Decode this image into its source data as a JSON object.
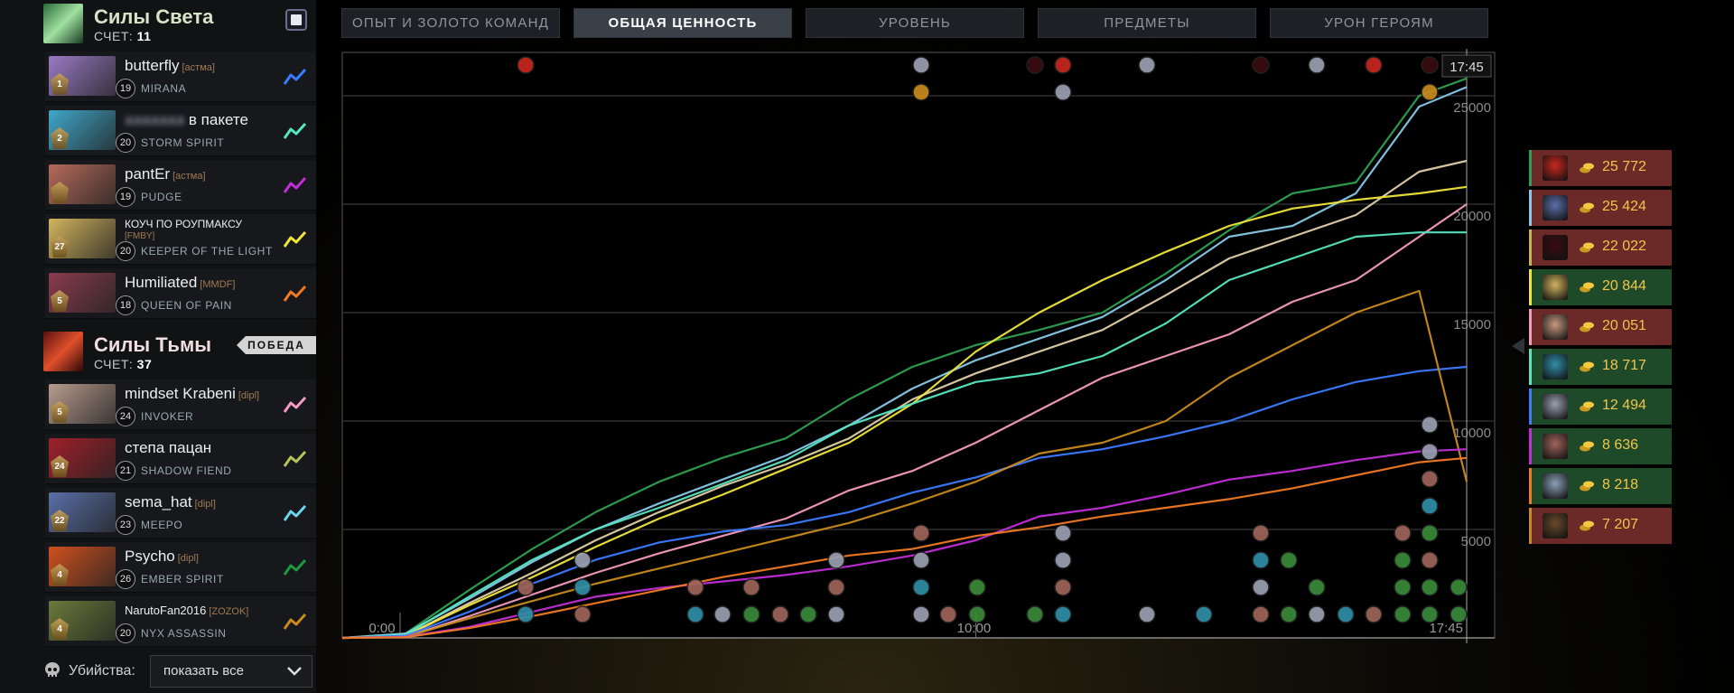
{
  "radiant": {
    "name": "Силы Света",
    "score_label": "СЧЕТ:",
    "score": "11",
    "players": [
      {
        "name": "butterfly",
        "tag": "[астма]",
        "level": "19",
        "hero": "MIRANA",
        "rank": "1",
        "color": "#3b7bff",
        "portrait": "#9a7bc4"
      },
      {
        "name": "в пакете",
        "blur": "ааааааа",
        "tag": "",
        "level": "20",
        "hero": "STORM SPIRIT",
        "rank": "2",
        "color": "#55e8c0",
        "portrait": "#3fa7c9"
      },
      {
        "name": "pantEr",
        "tag": "[астма]",
        "level": "19",
        "hero": "PUDGE",
        "rank": "",
        "color": "#c22ed8",
        "portrait": "#b56a5a"
      },
      {
        "name": "КОУЧ ПО РОУПМАКСУ",
        "tag2": "[FMBY]",
        "level": "20",
        "hero": "KEEPER OF THE LIGHT",
        "rank": "27",
        "color": "#f0e63a",
        "portrait": "#d2b45e",
        "small": true
      },
      {
        "name": "Humiliated",
        "tag": "[MMDF]",
        "level": "18",
        "hero": "QUEEN OF PAIN",
        "rank": "5",
        "color": "#f07a22",
        "portrait": "#8a3b4e"
      }
    ]
  },
  "dire": {
    "name": "Силы Тьмы",
    "score_label": "СЧЕТ:",
    "score": "37",
    "win_label": "ПОБЕДА",
    "players": [
      {
        "name": "mindset Krabeni",
        "tag": "[dipl]",
        "level": "24",
        "hero": "INVOKER",
        "rank": "5",
        "color": "#f59bc0",
        "portrait": "#b89b8e"
      },
      {
        "name": "степа пацан",
        "tag": "",
        "level": "21",
        "hero": "SHADOW FIEND",
        "rank": "24",
        "color": "#b8c25a",
        "portrait": "#a0202a"
      },
      {
        "name": "sema_hat",
        "tag": "[dipl]",
        "level": "23",
        "hero": "MEEPO",
        "rank": "22",
        "color": "#6fd0f0",
        "portrait": "#5a6fa8"
      },
      {
        "name": "Psycho",
        "tag": "[dipl]",
        "level": "26",
        "hero": "EMBER SPIRIT",
        "rank": "4",
        "color": "#1e9a3e",
        "portrait": "#d0501e"
      },
      {
        "name": "NarutoFan2016",
        "tag": "[ZOZOK]",
        "level": "20",
        "hero": "NYX ASSASSIN",
        "rank": "4",
        "color": "#c98a1e",
        "portrait": "#6a7a3a",
        "smallname": true
      }
    ]
  },
  "tabs": [
    {
      "label": "ОПЫТ И ЗОЛОТО КОМАНД",
      "active": false
    },
    {
      "label": "ОБЩАЯ ЦЕННОСТЬ",
      "active": true
    },
    {
      "label": "УРОВЕНЬ",
      "active": false
    },
    {
      "label": "ПРЕДМЕТЫ",
      "active": false
    },
    {
      "label": "УРОН ГЕРОЯМ",
      "active": false
    }
  ],
  "kills_filter": {
    "label": "Убийства:",
    "value": "показать все"
  },
  "leaderboard": [
    {
      "value": "25 772",
      "bg": "#6b2a28",
      "border": "#2ea050",
      "face": "#c8281e",
      "icon": "red-demon-icon"
    },
    {
      "value": "25 424",
      "bg": "#6b2a28",
      "border": "#88c8e8",
      "face": "#5a6fa8",
      "icon": "meepo-icon"
    },
    {
      "value": "22 022",
      "bg": "#6b2a28",
      "border": "#c9b54a",
      "face": "#3a0c10",
      "icon": "shadow-fiend-icon"
    },
    {
      "value": "20 844",
      "bg": "#1f4a2a",
      "border": "#f0e63a",
      "face": "#d2b45e",
      "icon": "keeper-icon"
    },
    {
      "value": "20 051",
      "bg": "#6b2a28",
      "border": "#f59bc0",
      "face": "#c7987e",
      "icon": "invoker-icon"
    },
    {
      "value": "18 717",
      "bg": "#1f4a2a",
      "border": "#55e8c0",
      "face": "#2f8fa8",
      "icon": "storm-spirit-icon"
    },
    {
      "value": "12 494",
      "bg": "#1f4a2a",
      "border": "#3b7bff",
      "face": "#9aa0b0",
      "icon": "mirana-icon"
    },
    {
      "value": "8 636",
      "bg": "#1f4a2a",
      "border": "#c22ed8",
      "face": "#a0645a",
      "icon": "pudge-icon"
    },
    {
      "value": "8 218",
      "bg": "#1f4a2a",
      "border": "#f07a22",
      "face": "#8aa0b8",
      "icon": "queen-of-pain-icon"
    },
    {
      "value": "7 207",
      "bg": "#6b2a28",
      "border": "#c98a1e",
      "face": "#6a4a2a",
      "icon": "nyx-icon"
    }
  ],
  "chart_data": {
    "type": "line",
    "x_unit": "minutes",
    "x_labels": [
      "0:00",
      "10:00",
      "17:45"
    ],
    "current_time_label": "17:45",
    "xlim": [
      0,
      17.75
    ],
    "ylim": [
      0,
      27000
    ],
    "y_ticks": [
      5000,
      10000,
      15000,
      20000,
      25000
    ],
    "y_tick_labels": [
      "5000",
      "10000",
      "15000",
      "20000",
      "25000"
    ],
    "grid": true,
    "x": [
      0,
      1,
      2,
      3,
      4,
      5,
      6,
      7,
      8,
      9,
      10,
      11,
      12,
      13,
      14,
      15,
      16,
      17,
      17.75
    ],
    "series": [
      {
        "color": "#2ea050",
        "values": [
          0,
          200,
          2200,
          4100,
          5800,
          7200,
          8300,
          9200,
          11000,
          12500,
          13500,
          14200,
          15000,
          16800,
          18800,
          20500,
          21000,
          25000,
          25800
        ]
      },
      {
        "color": "#88c8e8",
        "values": [
          0,
          200,
          1800,
          3500,
          5000,
          6200,
          7300,
          8400,
          9800,
          11500,
          12800,
          13800,
          14800,
          16500,
          18500,
          19000,
          20500,
          24500,
          25400
        ]
      },
      {
        "color": "#e0d0a8",
        "values": [
          0,
          100,
          1600,
          3000,
          4500,
          5800,
          7000,
          8000,
          9200,
          11000,
          12200,
          13200,
          14200,
          15800,
          17500,
          18500,
          19500,
          21500,
          22000
        ]
      },
      {
        "color": "#f0e63a",
        "values": [
          0,
          100,
          1500,
          2800,
          4200,
          5500,
          6600,
          7800,
          9000,
          10800,
          13200,
          15000,
          16500,
          17800,
          19000,
          19800,
          20200,
          20500,
          20800
        ]
      },
      {
        "color": "#f59bc0",
        "values": [
          0,
          50,
          1000,
          2000,
          3000,
          3900,
          4700,
          5500,
          6800,
          7700,
          9000,
          10500,
          12000,
          13000,
          14000,
          15500,
          16500,
          18500,
          20000
        ]
      },
      {
        "color": "#55e8c0",
        "values": [
          0,
          150,
          1900,
          3600,
          5000,
          6000,
          7100,
          8200,
          9800,
          10800,
          11800,
          12200,
          13000,
          14500,
          16500,
          17500,
          18500,
          18700,
          18700
        ]
      },
      {
        "color": "#3b7bff",
        "values": [
          0,
          100,
          1200,
          2500,
          3600,
          4400,
          4900,
          5200,
          5800,
          6700,
          7400,
          8300,
          8700,
          9300,
          10000,
          11000,
          11800,
          12300,
          12500
        ]
      },
      {
        "color": "#c98a1e",
        "values": [
          0,
          50,
          900,
          1700,
          2500,
          3200,
          3900,
          4600,
          5300,
          6200,
          7200,
          8500,
          9000,
          10000,
          12000,
          13500,
          15000,
          16000,
          7200
        ]
      },
      {
        "color": "#c22ed8",
        "values": [
          0,
          50,
          500,
          1200,
          1900,
          2300,
          2600,
          2900,
          3300,
          3800,
          4500,
          5600,
          6000,
          6600,
          7300,
          7700,
          8200,
          8600,
          8700
        ]
      },
      {
        "color": "#f07a22",
        "values": [
          0,
          30,
          450,
          1000,
          1600,
          2200,
          2800,
          3300,
          3800,
          4100,
          4700,
          5100,
          5600,
          6000,
          6400,
          6900,
          7500,
          8100,
          8300
        ]
      }
    ]
  }
}
